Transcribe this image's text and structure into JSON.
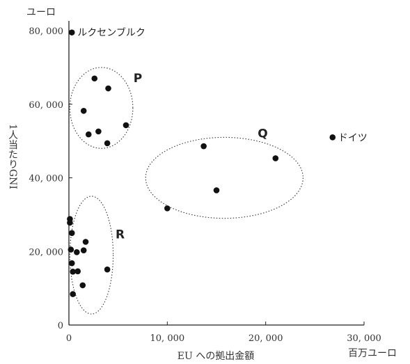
{
  "chart_data": {
    "type": "scatter",
    "title": "",
    "xlabel": "EU への拠出金額",
    "xunit": "百万ユーロ",
    "ylabel": "1人当たりGNI",
    "yunit": "ユーロ",
    "xlim": [
      0,
      30000
    ],
    "ylim": [
      0,
      80000
    ],
    "xticks": [
      0,
      10000,
      20000,
      30000
    ],
    "xtick_labels": [
      "0",
      "10, 000",
      "20, 000",
      "30, 000"
    ],
    "yticks": [
      0,
      20000,
      40000,
      60000,
      80000
    ],
    "ytick_labels": [
      "0",
      "20, 000",
      "40, 000",
      "60, 000",
      "80, 000"
    ],
    "grid": false,
    "points": [
      {
        "x": 300,
        "y": 79500,
        "label": "ルクセンブルク"
      },
      {
        "x": 26800,
        "y": 51000,
        "label": "ドイツ"
      },
      {
        "x": 2600,
        "y": 67000
      },
      {
        "x": 4000,
        "y": 64300
      },
      {
        "x": 1500,
        "y": 58200
      },
      {
        "x": 5800,
        "y": 54300
      },
      {
        "x": 2000,
        "y": 51800
      },
      {
        "x": 3000,
        "y": 52600
      },
      {
        "x": 3900,
        "y": 49400
      },
      {
        "x": 13700,
        "y": 48600
      },
      {
        "x": 21000,
        "y": 45300
      },
      {
        "x": 15000,
        "y": 36600
      },
      {
        "x": 10000,
        "y": 31700
      },
      {
        "x": 100,
        "y": 28800
      },
      {
        "x": 100,
        "y": 27800
      },
      {
        "x": 300,
        "y": 25000
      },
      {
        "x": 1700,
        "y": 22600
      },
      {
        "x": 200,
        "y": 20500
      },
      {
        "x": 800,
        "y": 19800
      },
      {
        "x": 1500,
        "y": 20300
      },
      {
        "x": 300,
        "y": 16800
      },
      {
        "x": 3900,
        "y": 15100
      },
      {
        "x": 400,
        "y": 14500
      },
      {
        "x": 900,
        "y": 14600
      },
      {
        "x": 1400,
        "y": 10800
      },
      {
        "x": 400,
        "y": 8400
      }
    ],
    "groups": [
      {
        "label": "P",
        "cx": 3300,
        "cy": 59000,
        "rx": 3200,
        "ry": 11000,
        "label_x": 7000,
        "label_y": 66000
      },
      {
        "label": "Q",
        "cx": 15800,
        "cy": 40000,
        "rx": 8000,
        "ry": 11000,
        "label_x": 19700,
        "label_y": 51000
      },
      {
        "label": "R",
        "cx": 2300,
        "cy": 19000,
        "rx": 2200,
        "ry": 16000,
        "label_x": 5200,
        "label_y": 23500
      }
    ]
  }
}
